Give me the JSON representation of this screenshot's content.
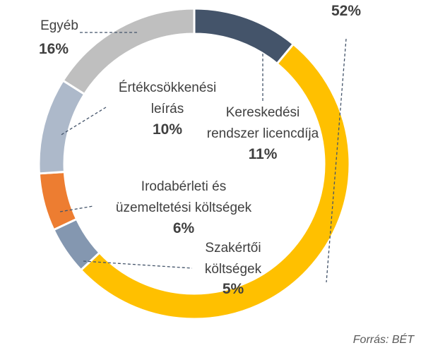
{
  "chart_data": {
    "type": "donut",
    "categories": [
      "Kereskedési\nrendszer licencdíja",
      null,
      "Szakértői\nköltségek",
      "Irodabérleti és\nüzemeltetési költségek",
      "Értékcsökkenési\nleírás",
      "Egyéb"
    ],
    "values": [
      11,
      52,
      5,
      6,
      10,
      16
    ],
    "value_labels": [
      "11%",
      "52%",
      "5%",
      "6%",
      "10%",
      "16%"
    ],
    "colors": [
      "#44546a",
      "#ffc000",
      "#8497b0",
      "#ed7d31",
      "#adb9ca",
      "#bfbfbf"
    ],
    "source": "Forrás: BÉT"
  }
}
